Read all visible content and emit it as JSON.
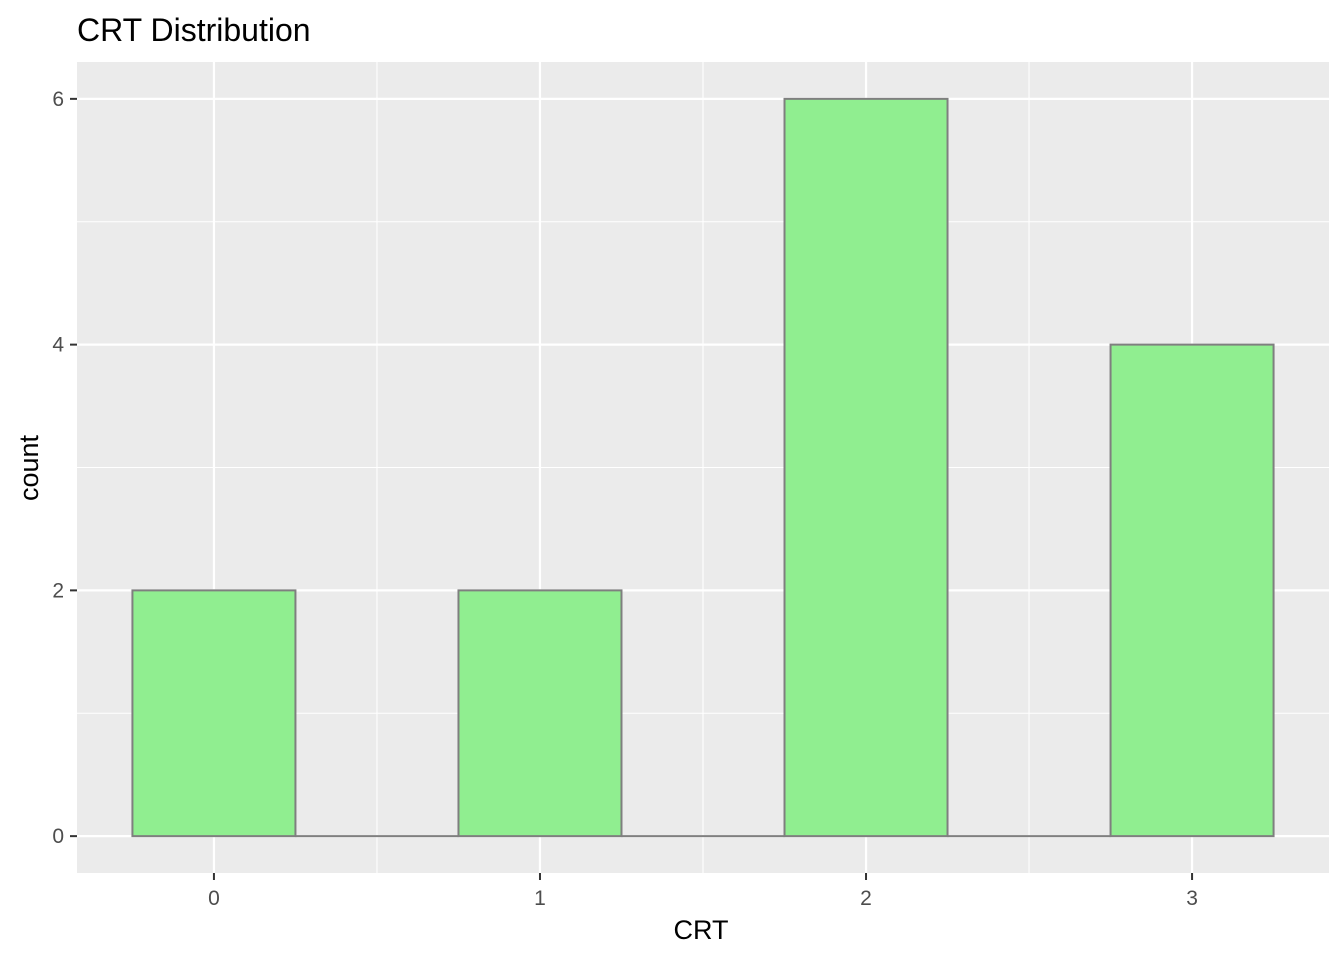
{
  "chart_data": {
    "type": "bar",
    "title": "CRT Distribution",
    "xlabel": "CRT",
    "ylabel": "count",
    "categories": [
      "0",
      "1",
      "2",
      "3"
    ],
    "x": [
      0,
      1,
      2,
      3
    ],
    "values": [
      2,
      2,
      6,
      4
    ],
    "xlim": [
      -0.42,
      3.42
    ],
    "ylim": [
      -0.3,
      6.3
    ],
    "x_ticks": [
      "0",
      "1",
      "2",
      "3"
    ],
    "y_ticks": [
      "0",
      "2",
      "4",
      "6"
    ],
    "y_tick_values": [
      0,
      2,
      4,
      6
    ],
    "y_minor_values": [
      1,
      3,
      5
    ],
    "x_minor_values": [
      0.5,
      1.5,
      2.5
    ],
    "bar_width": 0.5,
    "grid": true,
    "legend": "none",
    "colors": {
      "bar_fill": "#90EE90",
      "bar_outline": "#7f7f7f",
      "panel_background": "#EBEBEB",
      "grid_line": "#FFFFFF",
      "tick_text": "#4D4D4D",
      "tick_mark": "#333333"
    }
  }
}
